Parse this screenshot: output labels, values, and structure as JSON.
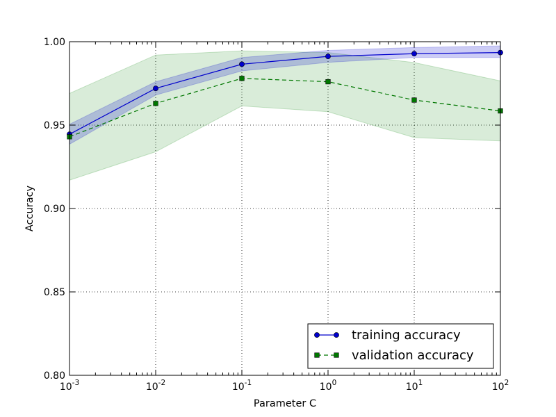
{
  "chart_data": {
    "type": "line",
    "title": "",
    "xlabel": "Parameter C",
    "ylabel": "Accuracy",
    "xscale": "log",
    "xlim": [
      0.001,
      100
    ],
    "ylim": [
      0.8,
      1.0
    ],
    "grid": true,
    "legend_position": "lower-right",
    "x": [
      0.001,
      0.01,
      0.1,
      1,
      10,
      100
    ],
    "x_tick_labels": [
      {
        "base": "10",
        "exp": "-3"
      },
      {
        "base": "10",
        "exp": "-2"
      },
      {
        "base": "10",
        "exp": "-1"
      },
      {
        "base": "10",
        "exp": "0"
      },
      {
        "base": "10",
        "exp": "1"
      },
      {
        "base": "10",
        "exp": "2"
      }
    ],
    "y_ticks": [
      0.8,
      0.85,
      0.9,
      0.95,
      1.0
    ],
    "y_tick_labels": [
      "0.80",
      "0.85",
      "0.90",
      "0.95",
      "1.00"
    ],
    "series": [
      {
        "name": "training accuracy",
        "values": [
          0.9445,
          0.972,
          0.9865,
          0.9912,
          0.9928,
          0.9935
        ],
        "upper": [
          0.9505,
          0.976,
          0.9905,
          0.9948,
          0.9965,
          0.9975
        ],
        "lower": [
          0.9385,
          0.968,
          0.9825,
          0.9876,
          0.9905,
          0.9905
        ],
        "color": "#0000cc",
        "band_color": "#0000cc",
        "marker": "circle",
        "linestyle": "solid"
      },
      {
        "name": "validation accuracy",
        "values": [
          0.943,
          0.963,
          0.978,
          0.976,
          0.965,
          0.9585
        ],
        "upper": [
          0.969,
          0.992,
          0.9945,
          0.9935,
          0.9875,
          0.9765
        ],
        "lower": [
          0.917,
          0.934,
          0.9615,
          0.958,
          0.9425,
          0.9405
        ],
        "color": "#007700",
        "band_color": "#008000",
        "marker": "square",
        "linestyle": "dashed"
      }
    ]
  }
}
